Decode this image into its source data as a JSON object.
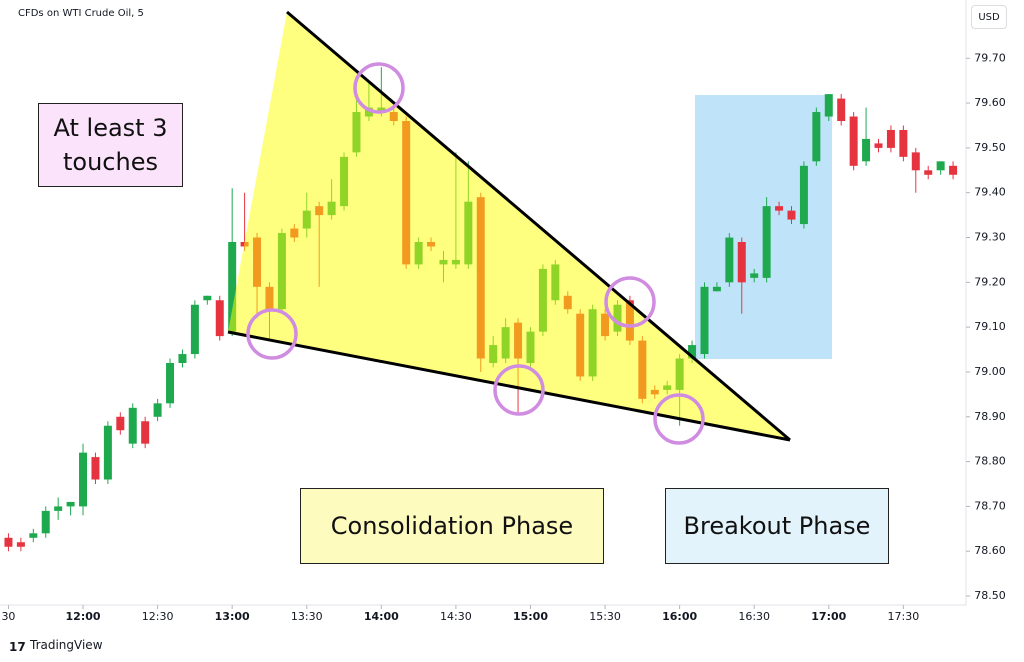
{
  "header": {
    "title": "CFDs on WTI Crude Oil, 5",
    "currency": "USD",
    "brand": "TradingView"
  },
  "annotations": [
    "At least 3 touches",
    "Consolidation Phase",
    "Breakout Phase"
  ],
  "chart_data": {
    "type": "candlestick",
    "up_color": "#1fa94f",
    "down_color": "#e5343f",
    "xlim": [
      686.6,
      1075.2
    ],
    "ylim": [
      78.48,
      79.83
    ],
    "xticks": [
      {
        "value": 690,
        "label": "30"
      },
      {
        "value": 720,
        "label": "12:00"
      },
      {
        "value": 750,
        "label": "12:30"
      },
      {
        "value": 780,
        "label": "13:00"
      },
      {
        "value": 810,
        "label": "13:30"
      },
      {
        "value": 840,
        "label": "14:00"
      },
      {
        "value": 870,
        "label": "14:30"
      },
      {
        "value": 900,
        "label": "15:00"
      },
      {
        "value": 930,
        "label": "15:30"
      },
      {
        "value": 960,
        "label": "16:00"
      },
      {
        "value": 990,
        "label": "16:30"
      },
      {
        "value": 1020,
        "label": "17:00"
      },
      {
        "value": 1050,
        "label": "17:30"
      }
    ],
    "yticks": [
      {
        "value": 78.5,
        "label": "78.50"
      },
      {
        "value": 78.6,
        "label": "78.60"
      },
      {
        "value": 78.7,
        "label": "78.70"
      },
      {
        "value": 78.8,
        "label": "78.80"
      },
      {
        "value": 78.9,
        "label": "78.90"
      },
      {
        "value": 79.0,
        "label": "79.00"
      },
      {
        "value": 79.1,
        "label": "79.10"
      },
      {
        "value": 79.2,
        "label": "79.20"
      },
      {
        "value": 79.3,
        "label": "79.30"
      },
      {
        "value": 79.4,
        "label": "79.40"
      },
      {
        "value": 79.5,
        "label": "79.50"
      },
      {
        "value": 79.6,
        "label": "79.60"
      },
      {
        "value": 79.7,
        "label": "79.70"
      }
    ],
    "x": [
      690,
      695,
      700,
      705,
      710,
      715,
      720,
      725,
      730,
      735,
      740,
      745,
      750,
      755,
      760,
      765,
      770,
      775,
      780,
      785,
      790,
      795,
      800,
      805,
      810,
      815,
      820,
      825,
      830,
      835,
      840,
      845,
      850,
      855,
      860,
      865,
      870,
      875,
      880,
      885,
      890,
      895,
      900,
      905,
      910,
      915,
      920,
      925,
      930,
      935,
      940,
      945,
      950,
      955,
      960,
      965,
      970,
      975,
      980,
      985,
      990,
      995,
      1000,
      1005,
      1010,
      1015,
      1020,
      1025,
      1030,
      1035,
      1040,
      1045,
      1050,
      1055,
      1060,
      1065,
      1070
    ],
    "open": [
      78.63,
      78.62,
      78.63,
      78.64,
      78.69,
      78.7,
      78.7,
      78.81,
      78.76,
      78.9,
      78.84,
      78.89,
      78.9,
      78.93,
      79.02,
      79.04,
      79.16,
      79.16,
      79.09,
      79.29,
      79.3,
      79.19,
      79.14,
      79.32,
      79.32,
      79.37,
      79.35,
      79.37,
      79.49,
      79.57,
      79.58,
      79.58,
      79.56,
      79.24,
      79.29,
      79.24,
      79.24,
      79.24,
      79.39,
      79.02,
      79.03,
      79.11,
      79.02,
      79.09,
      79.16,
      79.17,
      79.13,
      78.99,
      79.13,
      79.09,
      79.16,
      79.07,
      78.96,
      78.96,
      78.96,
      79.03,
      79.04,
      79.18,
      79.2,
      79.29,
      79.21,
      79.21,
      79.37,
      79.36,
      79.33,
      79.47,
      79.57,
      79.61,
      79.57,
      79.47,
      79.51,
      79.54,
      79.54,
      79.49,
      79.45,
      79.45,
      79.46
    ],
    "high": [
      78.64,
      78.63,
      78.65,
      78.7,
      78.72,
      78.71,
      78.84,
      78.82,
      78.89,
      78.91,
      78.93,
      78.9,
      78.94,
      79.03,
      79.05,
      79.16,
      79.17,
      79.17,
      79.41,
      79.4,
      79.31,
      79.2,
      79.32,
      79.33,
      79.4,
      79.38,
      79.43,
      79.49,
      79.62,
      79.65,
      79.68,
      79.6,
      79.57,
      79.3,
      79.3,
      79.27,
      79.49,
      79.47,
      79.4,
      79.08,
      79.12,
      79.12,
      79.1,
      79.24,
      79.25,
      79.18,
      79.14,
      79.15,
      79.14,
      79.16,
      79.17,
      79.08,
      78.97,
      78.98,
      79.04,
      79.07,
      79.2,
      79.2,
      79.31,
      79.3,
      79.23,
      79.39,
      79.38,
      79.37,
      79.47,
      79.59,
      79.62,
      79.62,
      79.58,
      79.59,
      79.52,
      79.55,
      79.55,
      79.5,
      79.46,
      79.47,
      79.47
    ],
    "low": [
      78.6,
      78.6,
      78.62,
      78.63,
      78.67,
      78.68,
      78.68,
      78.75,
      78.75,
      78.86,
      78.83,
      78.83,
      78.89,
      78.92,
      79.01,
      79.03,
      79.15,
      79.07,
      79.08,
      79.27,
      79.12,
      79.07,
      79.13,
      79.29,
      79.3,
      79.19,
      79.34,
      79.36,
      79.48,
      79.56,
      79.57,
      79.55,
      79.23,
      79.23,
      79.27,
      79.2,
      79.23,
      79.23,
      79.0,
      79.01,
      79.02,
      78.91,
      79.01,
      79.08,
      79.15,
      79.13,
      78.98,
      78.98,
      79.07,
      79.08,
      79.06,
      78.93,
      78.94,
      78.95,
      78.88,
      79.02,
      79.03,
      79.18,
      79.19,
      79.13,
      79.2,
      79.2,
      79.35,
      79.33,
      79.32,
      79.46,
      79.56,
      79.55,
      79.45,
      79.46,
      79.49,
      79.49,
      79.47,
      79.4,
      79.43,
      79.44,
      79.43
    ],
    "close": [
      78.61,
      78.61,
      78.64,
      78.69,
      78.7,
      78.71,
      78.82,
      78.76,
      78.88,
      78.87,
      78.92,
      78.84,
      78.93,
      79.02,
      79.04,
      79.15,
      79.17,
      79.08,
      79.29,
      79.28,
      79.19,
      79.14,
      79.31,
      79.3,
      79.36,
      79.35,
      79.38,
      79.48,
      79.58,
      79.59,
      79.59,
      79.56,
      79.24,
      79.29,
      79.28,
      79.25,
      79.25,
      79.38,
      79.03,
      79.06,
      79.1,
      79.03,
      79.09,
      79.23,
      79.24,
      79.14,
      78.99,
      79.14,
      79.08,
      79.15,
      79.07,
      78.94,
      78.95,
      78.97,
      79.03,
      79.06,
      79.19,
      79.19,
      79.3,
      79.2,
      79.22,
      79.37,
      79.36,
      79.34,
      79.46,
      79.58,
      79.62,
      79.56,
      79.46,
      79.52,
      79.5,
      79.5,
      79.48,
      79.45,
      79.44,
      79.47,
      79.44
    ]
  }
}
